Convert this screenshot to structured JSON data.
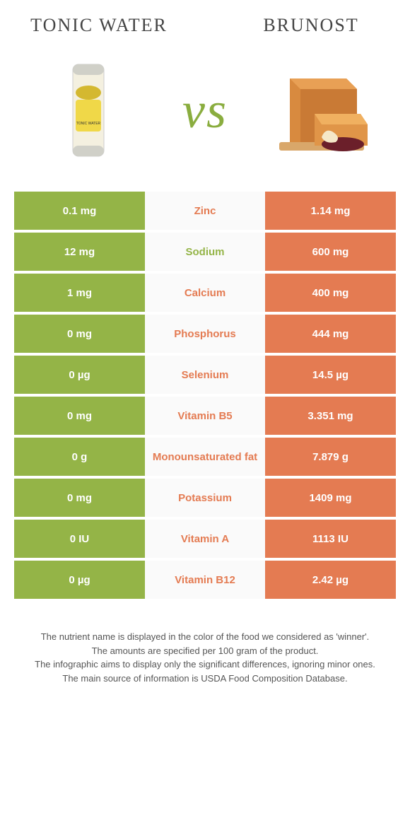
{
  "header": {
    "left_title": "Tonic water",
    "right_title": "Brunost",
    "vs": "vs"
  },
  "colors": {
    "left": "#94b447",
    "right": "#e47b52",
    "mid_bg": "#fafafa",
    "nutrient_left": "#94b447",
    "nutrient_right": "#e47b52"
  },
  "rows": [
    {
      "left": "0.1 mg",
      "nutrient": "Zinc",
      "right": "1.14 mg",
      "winner": "right"
    },
    {
      "left": "12 mg",
      "nutrient": "Sodium",
      "right": "600 mg",
      "winner": "left"
    },
    {
      "left": "1 mg",
      "nutrient": "Calcium",
      "right": "400 mg",
      "winner": "right"
    },
    {
      "left": "0 mg",
      "nutrient": "Phosphorus",
      "right": "444 mg",
      "winner": "right"
    },
    {
      "left": "0 µg",
      "nutrient": "Selenium",
      "right": "14.5 µg",
      "winner": "right"
    },
    {
      "left": "0 mg",
      "nutrient": "Vitamin B5",
      "right": "3.351 mg",
      "winner": "right"
    },
    {
      "left": "0 g",
      "nutrient": "Monounsaturated fat",
      "right": "7.879 g",
      "winner": "right"
    },
    {
      "left": "0 mg",
      "nutrient": "Potassium",
      "right": "1409 mg",
      "winner": "right"
    },
    {
      "left": "0 IU",
      "nutrient": "Vitamin A",
      "right": "1113 IU",
      "winner": "right"
    },
    {
      "left": "0 µg",
      "nutrient": "Vitamin B12",
      "right": "2.42 µg",
      "winner": "right"
    }
  ],
  "footer": {
    "line1": "The nutrient name is displayed in the color of the food we considered as 'winner'.",
    "line2": "The amounts are specified per 100 gram of the product.",
    "line3": "The infographic aims to display only the significant differences, ignoring minor ones.",
    "line4": "The main source of information is USDA Food Composition Database."
  }
}
